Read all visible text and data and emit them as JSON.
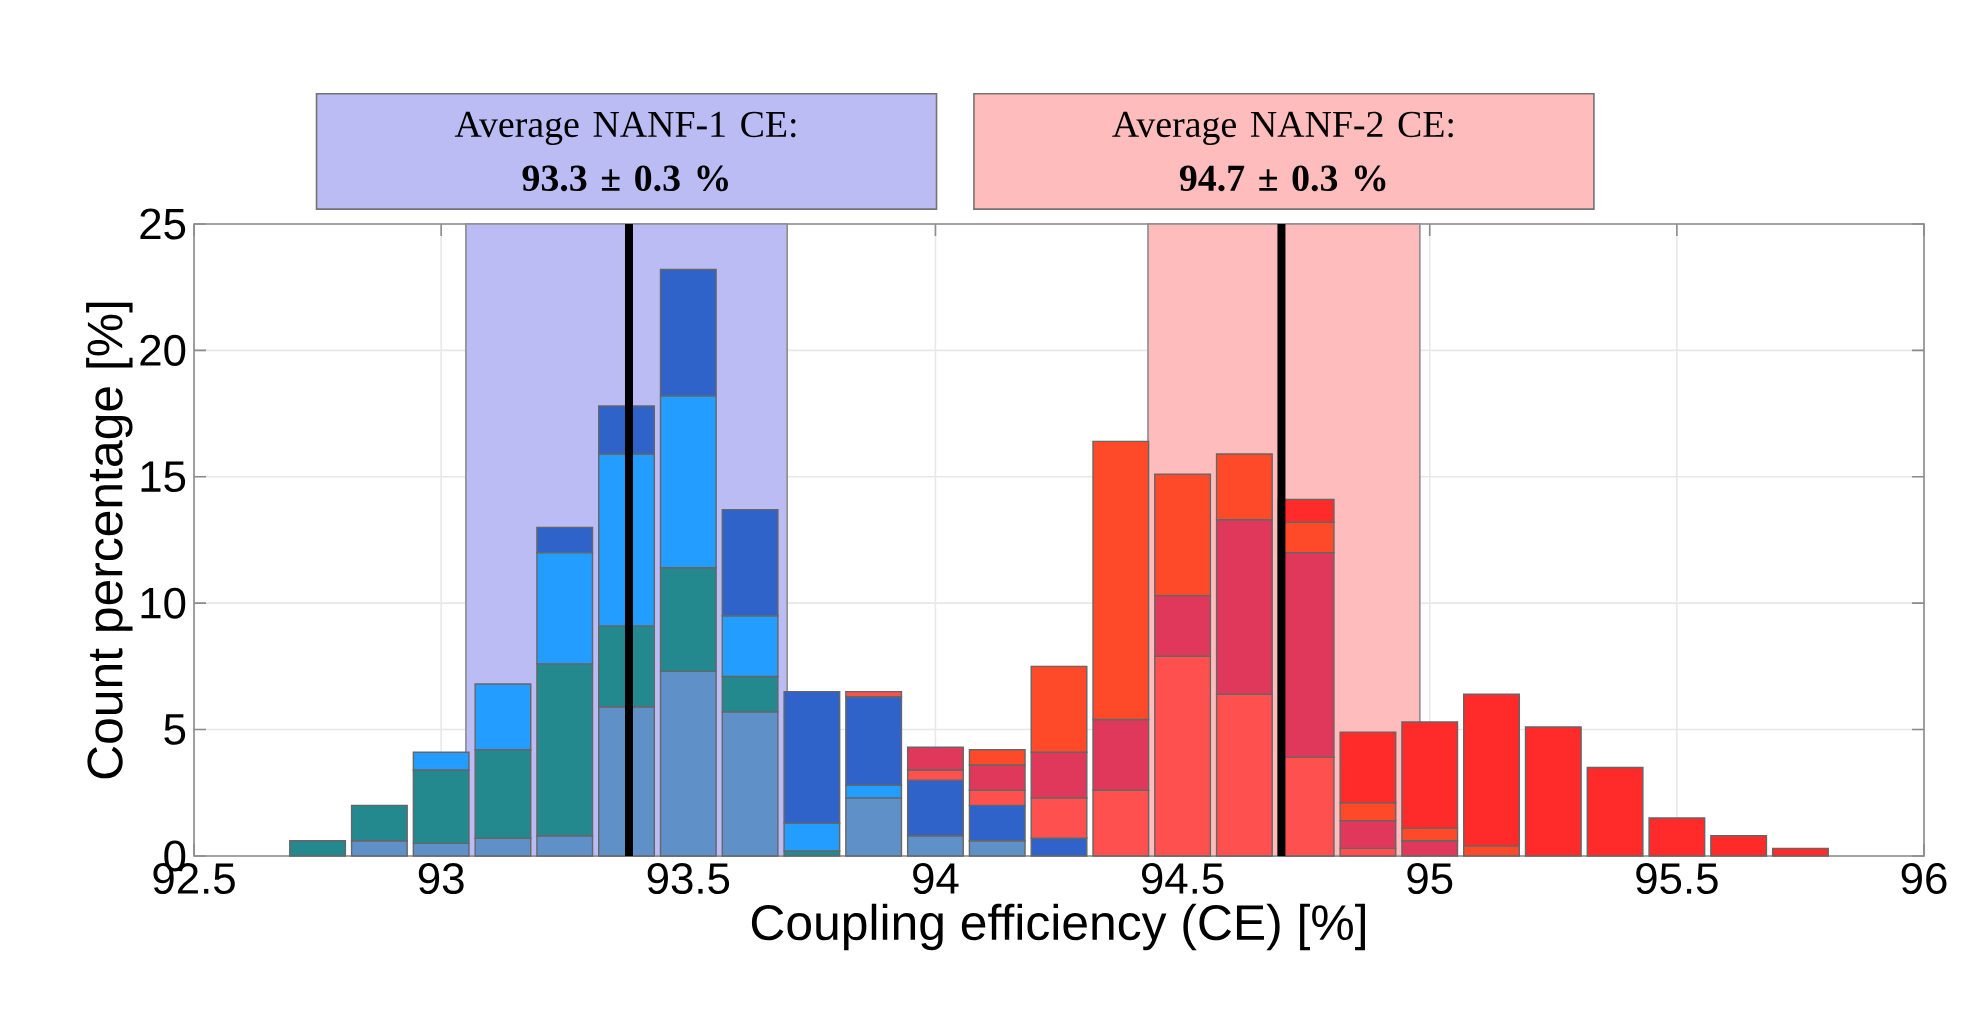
{
  "chart_data": {
    "type": "bar",
    "xlabel": "Coupling efficiency (CE) [%]",
    "ylabel": "Count percentage [%]",
    "x": [
      92.75,
      92.875,
      93,
      93.125,
      93.25,
      93.375,
      93.5,
      93.625,
      93.75,
      93.875,
      94,
      94.125,
      94.25,
      94.375,
      94.5,
      94.625,
      94.75,
      94.875,
      95,
      95.125,
      95.25,
      95.375,
      95.5,
      95.625,
      95.75
    ],
    "stacked": true,
    "series": [
      {
        "color": "#6090c8",
        "values": [
          0,
          0.6,
          0.5,
          0.7,
          0.8,
          5.9,
          7.3,
          5.7,
          0,
          2.3,
          0.8,
          0.6,
          0,
          0,
          0,
          0,
          0,
          0,
          0,
          0,
          0,
          0,
          0,
          0,
          0
        ]
      },
      {
        "color": "#23898f",
        "values": [
          0.6,
          1.4,
          2.9,
          3.5,
          6.8,
          3.2,
          4.1,
          1.4,
          0.2,
          0,
          0,
          0,
          0,
          0,
          0,
          0,
          0,
          0,
          0,
          0,
          0,
          0,
          0,
          0,
          0
        ]
      },
      {
        "color": "#239dff",
        "values": [
          0,
          0,
          0.7,
          2.6,
          4.4,
          6.8,
          6.8,
          2.4,
          1.1,
          0.5,
          0,
          0,
          0,
          0,
          0,
          0,
          0,
          0,
          0,
          0,
          0,
          0,
          0,
          0,
          0
        ]
      },
      {
        "color": "#2f63c9",
        "values": [
          0,
          0,
          0,
          0,
          1.0,
          1.9,
          5.0,
          4.2,
          5.2,
          3.5,
          2.2,
          1.4,
          0.7,
          0,
          0,
          0,
          0,
          0,
          0,
          0,
          0,
          0,
          0,
          0,
          0
        ]
      },
      {
        "color": "#ff5050",
        "values": [
          0,
          0,
          0,
          0,
          0,
          0,
          0,
          0,
          0,
          0.2,
          0.4,
          0.6,
          1.6,
          2.6,
          7.9,
          6.4,
          3.9,
          0.3,
          0,
          0,
          0,
          0,
          0,
          0,
          0
        ]
      },
      {
        "color": "#e0385a",
        "values": [
          0,
          0,
          0,
          0,
          0,
          0,
          0,
          0,
          0,
          0,
          0.9,
          1.0,
          1.8,
          2.8,
          2.4,
          6.9,
          8.1,
          1.1,
          0.6,
          0,
          0,
          0,
          0,
          0,
          0
        ]
      },
      {
        "color": "#ff4a2a",
        "values": [
          0,
          0,
          0,
          0,
          0,
          0,
          0,
          0,
          0,
          0,
          0,
          0.6,
          3.4,
          11.0,
          4.8,
          2.6,
          1.2,
          0.7,
          0.5,
          0.4,
          0,
          0,
          0,
          0,
          0
        ]
      },
      {
        "color": "#ff2a2a",
        "values": [
          0,
          0,
          0,
          0,
          0,
          0,
          0,
          0,
          0,
          0,
          0,
          0,
          0,
          0,
          0,
          0,
          0.9,
          2.8,
          4.2,
          6.0,
          5.1,
          3.5,
          1.5,
          0.8,
          0.3
        ]
      }
    ],
    "xlim": [
      92.5,
      96
    ],
    "xticks": [
      92.5,
      93,
      93.5,
      94,
      94.5,
      95,
      95.5,
      96
    ],
    "ylim": [
      0,
      25
    ],
    "yticks": [
      0,
      5,
      10,
      15,
      20,
      25
    ],
    "grid": true,
    "bands": [
      {
        "axis": "x",
        "from": 93.05,
        "to": 93.7,
        "label": "Average NANF-1 CE:\n**93.3 ± 0.3 %**",
        "color": "#bcbcf5"
      },
      {
        "axis": "x",
        "from": 94.43,
        "to": 94.98,
        "label": "Average NANF-2 CE:\n**94.7 ± 0.3 %**",
        "color": "#ffbcbc"
      }
    ],
    "ref_lines": [
      {
        "axis": "x",
        "value": 93.38,
        "color": "#000000"
      },
      {
        "axis": "x",
        "value": 94.7,
        "color": "#000000"
      }
    ]
  }
}
